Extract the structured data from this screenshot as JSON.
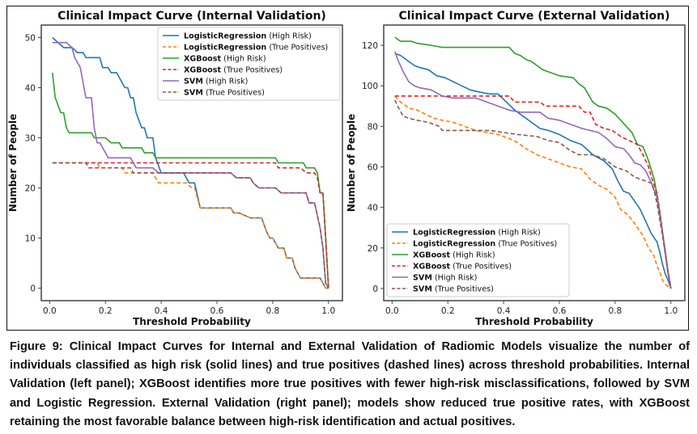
{
  "caption": "Figure 9: Clinical Impact Curves for Internal and External Validation of Radiomic Models visualize the number of individuals classified as high risk (solid lines) and true positives (dashed lines) across threshold probabilities. Internal Validation (left panel); XGBoost identifies more true positives with fewer high-risk misclassifications, followed by SVM and Logistic Regression. External Validation (right panel); models show reduced true positive rates, with XGBoost retaining the most favorable balance between high-risk identification and actual positives.",
  "colors": {
    "LogisticRegression_high": "#1f77b4",
    "LogisticRegression_tp": "#ff7f0e",
    "XGBoost_high": "#2ca02c",
    "XGBoost_tp": "#d62728",
    "SVM_high": "#9467bd",
    "SVM_tp": "#8c564b"
  },
  "chart_data": [
    {
      "type": "line",
      "title": "Clinical Impact Curve (Internal Validation)",
      "xlabel": "Threshold Probability",
      "ylabel": "Number of People",
      "xlim": [
        -0.03,
        1.05
      ],
      "ylim": [
        -2.5,
        52.5
      ],
      "xticks": [
        0.0,
        0.2,
        0.4,
        0.6,
        0.8,
        1.0
      ],
      "xtick_labels": [
        "0.0",
        "0.2",
        "0.4",
        "0.6",
        "0.8",
        "1.0"
      ],
      "yticks": [
        0,
        10,
        20,
        30,
        40,
        50
      ],
      "ytick_labels": [
        "0",
        "10",
        "20",
        "30",
        "40",
        "50"
      ],
      "grid": false,
      "legend_position": "top-right",
      "series": [
        {
          "key": "LogisticRegression_high",
          "model": "LogisticRegression",
          "suffix": " (High Risk)",
          "style": "solid",
          "x": [
            0.01,
            0.03,
            0.05,
            0.08,
            0.1,
            0.12,
            0.13,
            0.15,
            0.18,
            0.19,
            0.21,
            0.22,
            0.24,
            0.27,
            0.28,
            0.29,
            0.3,
            0.31,
            0.33,
            0.34,
            0.35,
            0.37,
            0.38,
            0.4,
            0.48,
            0.5,
            0.52,
            0.54,
            0.65,
            0.66,
            0.68,
            0.72,
            0.76,
            0.78,
            0.79,
            0.8,
            0.82,
            0.84,
            0.85,
            0.87,
            0.88,
            0.9,
            0.91,
            0.97,
            0.99,
            1.0
          ],
          "y": [
            50,
            49,
            48,
            48,
            47,
            47,
            46,
            46,
            46,
            44,
            44,
            43,
            43,
            40,
            40,
            38,
            38,
            35,
            32,
            32,
            30,
            30,
            26,
            23,
            23,
            21,
            21,
            16,
            16,
            15,
            15,
            14,
            14,
            11,
            10,
            10,
            8,
            8,
            6,
            6,
            4,
            2,
            2,
            2,
            0,
            0
          ]
        },
        {
          "key": "LogisticRegression_tp",
          "model": "LogisticRegression",
          "suffix": " (True Positives)",
          "style": "dashed",
          "x": [
            0.01,
            0.17,
            0.18,
            0.26,
            0.27,
            0.37,
            0.39,
            0.49,
            0.51,
            0.52,
            0.54,
            0.65,
            0.66,
            0.68,
            0.72,
            0.76,
            0.78,
            0.79,
            0.8,
            0.82,
            0.84,
            0.85,
            0.87,
            0.88,
            0.9,
            0.91,
            0.97,
            0.99,
            1.0
          ],
          "y": [
            25,
            25,
            24,
            24,
            23,
            23,
            21,
            21,
            20,
            20,
            16,
            16,
            15,
            15,
            14,
            14,
            11,
            10,
            10,
            8,
            8,
            6,
            6,
            4,
            2,
            2,
            2,
            0,
            0
          ]
        },
        {
          "key": "XGBoost_high",
          "model": "XGBoost",
          "suffix": " (High Risk)",
          "style": "solid",
          "x": [
            0.01,
            0.02,
            0.04,
            0.05,
            0.06,
            0.07,
            0.15,
            0.16,
            0.2,
            0.22,
            0.25,
            0.26,
            0.33,
            0.34,
            0.37,
            0.38,
            0.81,
            0.82,
            0.91,
            0.92,
            0.95,
            0.96,
            0.97,
            0.98,
            0.99,
            1.0
          ],
          "y": [
            43,
            38,
            35,
            35,
            32,
            31,
            31,
            30,
            30,
            29,
            29,
            28,
            28,
            27,
            27,
            26,
            26,
            25,
            25,
            24,
            24,
            23,
            19,
            19,
            10,
            0
          ]
        },
        {
          "key": "XGBoost_tp",
          "model": "XGBoost",
          "suffix": " (True Positives)",
          "style": "dashed",
          "x": [
            0.01,
            0.81,
            0.82,
            0.9,
            0.92,
            0.95,
            0.96,
            0.97,
            0.98,
            0.99,
            1.0
          ],
          "y": [
            25,
            25,
            24,
            24,
            23,
            23,
            22,
            19,
            19,
            10,
            0
          ]
        },
        {
          "key": "SVM_high",
          "model": "SVM",
          "suffix": " (High Risk)",
          "style": "solid",
          "x": [
            0.01,
            0.06,
            0.08,
            0.09,
            0.11,
            0.13,
            0.15,
            0.16,
            0.17,
            0.18,
            0.19,
            0.21,
            0.29,
            0.31,
            0.37,
            0.39,
            0.65,
            0.67,
            0.72,
            0.73,
            0.75,
            0.81,
            0.83,
            0.92,
            0.93,
            0.95,
            0.97,
            0.98,
            0.99,
            1.0
          ],
          "y": [
            49,
            49,
            48,
            46,
            44,
            38,
            38,
            32,
            29,
            29,
            28,
            26,
            26,
            24,
            24,
            23,
            23,
            22,
            22,
            21,
            20,
            20,
            19,
            19,
            17,
            17,
            12,
            8,
            1,
            0
          ]
        },
        {
          "key": "SVM_tp",
          "model": "SVM",
          "suffix": " (True Positives)",
          "style": "dashed",
          "x": [
            0.01,
            0.13,
            0.14,
            0.29,
            0.3,
            0.65,
            0.67,
            0.72,
            0.73,
            0.75,
            0.81,
            0.83,
            0.92,
            0.93,
            0.95,
            0.97,
            0.98,
            0.99,
            1.0
          ],
          "y": [
            25,
            25,
            24,
            24,
            23,
            23,
            22,
            22,
            21,
            20,
            20,
            19,
            19,
            17,
            17,
            12,
            8,
            1,
            0
          ]
        }
      ]
    },
    {
      "type": "line",
      "title": "Clinical Impact Curve (External Validation)",
      "xlabel": "Threshold Probability",
      "ylabel": "Number of People",
      "xlim": [
        -0.03,
        1.05
      ],
      "ylim": [
        -6,
        130
      ],
      "xticks": [
        0.0,
        0.2,
        0.4,
        0.6,
        0.8,
        1.0
      ],
      "xtick_labels": [
        "0.0",
        "0.2",
        "0.4",
        "0.6",
        "0.8",
        "1.0"
      ],
      "yticks": [
        0,
        20,
        40,
        60,
        80,
        100,
        120
      ],
      "ytick_labels": [
        "0",
        "20",
        "40",
        "60",
        "80",
        "100",
        "120"
      ],
      "grid": false,
      "legend_position": "bottom-left",
      "series": [
        {
          "key": "LogisticRegression_high",
          "model": "LogisticRegression",
          "suffix": " (High Risk)",
          "style": "solid",
          "x": [
            0.01,
            0.03,
            0.06,
            0.08,
            0.1,
            0.13,
            0.16,
            0.19,
            0.22,
            0.25,
            0.28,
            0.31,
            0.35,
            0.38,
            0.41,
            0.44,
            0.47,
            0.5,
            0.53,
            0.56,
            0.6,
            0.64,
            0.68,
            0.72,
            0.76,
            0.79,
            0.81,
            0.83,
            0.85,
            0.87,
            0.89,
            0.91,
            0.93,
            0.95,
            0.96,
            0.97,
            0.98,
            0.99,
            1.0
          ],
          "y": [
            116,
            115,
            112,
            110,
            109,
            108,
            105,
            104,
            102,
            100,
            98,
            97,
            96,
            96,
            92,
            88,
            85,
            82,
            79,
            78,
            76,
            73,
            71,
            66,
            63,
            59,
            53,
            48,
            47,
            43,
            39,
            33,
            27,
            23,
            18,
            12,
            7,
            4,
            0
          ]
        },
        {
          "key": "LogisticRegression_tp",
          "model": "LogisticRegression",
          "suffix": " (True Positives)",
          "style": "dashed",
          "x": [
            0.01,
            0.03,
            0.06,
            0.09,
            0.12,
            0.15,
            0.18,
            0.22,
            0.26,
            0.3,
            0.34,
            0.38,
            0.42,
            0.45,
            0.48,
            0.52,
            0.56,
            0.6,
            0.64,
            0.68,
            0.71,
            0.74,
            0.77,
            0.8,
            0.82,
            0.84,
            0.86,
            0.88,
            0.9,
            0.92,
            0.94,
            0.95,
            0.96,
            0.97,
            0.98,
            1.0
          ],
          "y": [
            95,
            92,
            89,
            88,
            86,
            84,
            83,
            82,
            80,
            78,
            77,
            76,
            74,
            72,
            69,
            66,
            64,
            62,
            60,
            59,
            54,
            51,
            49,
            45,
            39,
            37,
            34,
            30,
            26,
            20,
            16,
            11,
            8,
            4,
            2,
            0
          ]
        },
        {
          "key": "XGBoost_high",
          "model": "XGBoost",
          "suffix": " (High Risk)",
          "style": "solid",
          "x": [
            0.01,
            0.03,
            0.07,
            0.09,
            0.14,
            0.18,
            0.42,
            0.44,
            0.46,
            0.48,
            0.5,
            0.52,
            0.54,
            0.56,
            0.6,
            0.65,
            0.67,
            0.69,
            0.72,
            0.74,
            0.77,
            0.8,
            0.82,
            0.84,
            0.86,
            0.88,
            0.9,
            0.92,
            0.94,
            0.95,
            0.96,
            0.97,
            0.98,
            0.99,
            1.0
          ],
          "y": [
            124,
            122,
            122,
            121,
            120,
            119,
            119,
            116,
            115,
            113,
            112,
            110,
            108,
            107,
            105,
            104,
            101,
            99,
            92,
            90,
            89,
            86,
            83,
            80,
            77,
            71,
            70,
            63,
            54,
            46,
            38,
            28,
            18,
            8,
            0
          ]
        },
        {
          "key": "XGBoost_tp",
          "model": "XGBoost",
          "suffix": " (True Positives)",
          "style": "dashed",
          "x": [
            0.01,
            0.42,
            0.44,
            0.53,
            0.55,
            0.67,
            0.69,
            0.71,
            0.73,
            0.76,
            0.79,
            0.82,
            0.85,
            0.88,
            0.9,
            0.92,
            0.93,
            0.95,
            0.96,
            0.97,
            0.98,
            0.99,
            1.0
          ],
          "y": [
            95,
            95,
            92,
            92,
            90,
            90,
            87,
            87,
            81,
            79,
            78,
            75,
            73,
            71,
            66,
            60,
            55,
            47,
            38,
            28,
            18,
            8,
            0
          ]
        },
        {
          "key": "SVM_high",
          "model": "SVM",
          "suffix": " (High Risk)",
          "style": "solid",
          "x": [
            0.01,
            0.02,
            0.04,
            0.06,
            0.08,
            0.1,
            0.14,
            0.18,
            0.22,
            0.3,
            0.34,
            0.38,
            0.42,
            0.46,
            0.53,
            0.56,
            0.6,
            0.64,
            0.68,
            0.71,
            0.74,
            0.77,
            0.8,
            0.83,
            0.85,
            0.87,
            0.89,
            0.91,
            0.93,
            0.95,
            0.96,
            0.97,
            0.98,
            0.99,
            1.0
          ],
          "y": [
            117,
            113,
            107,
            102,
            100,
            99,
            98,
            95,
            94,
            94,
            92,
            90,
            88,
            87,
            87,
            84,
            83,
            81,
            79,
            78,
            77,
            74,
            70,
            69,
            66,
            62,
            61,
            58,
            52,
            45,
            36,
            27,
            17,
            7,
            0
          ]
        },
        {
          "key": "SVM_tp",
          "model": "SVM",
          "suffix": " (True Positives)",
          "style": "dashed",
          "x": [
            0.01,
            0.02,
            0.04,
            0.06,
            0.09,
            0.13,
            0.17,
            0.18,
            0.35,
            0.4,
            0.45,
            0.52,
            0.56,
            0.6,
            0.64,
            0.67,
            0.72,
            0.76,
            0.8,
            0.84,
            0.87,
            0.89,
            0.91,
            0.93,
            0.94,
            0.95,
            0.96,
            0.97,
            0.98,
            0.99,
            1.0
          ],
          "y": [
            93,
            90,
            85,
            84,
            83,
            82,
            80,
            78,
            78,
            77,
            76,
            75,
            73,
            72,
            68,
            66,
            66,
            64,
            60,
            58,
            55,
            54,
            53,
            52,
            48,
            42,
            34,
            26,
            17,
            8,
            0
          ]
        }
      ]
    }
  ]
}
